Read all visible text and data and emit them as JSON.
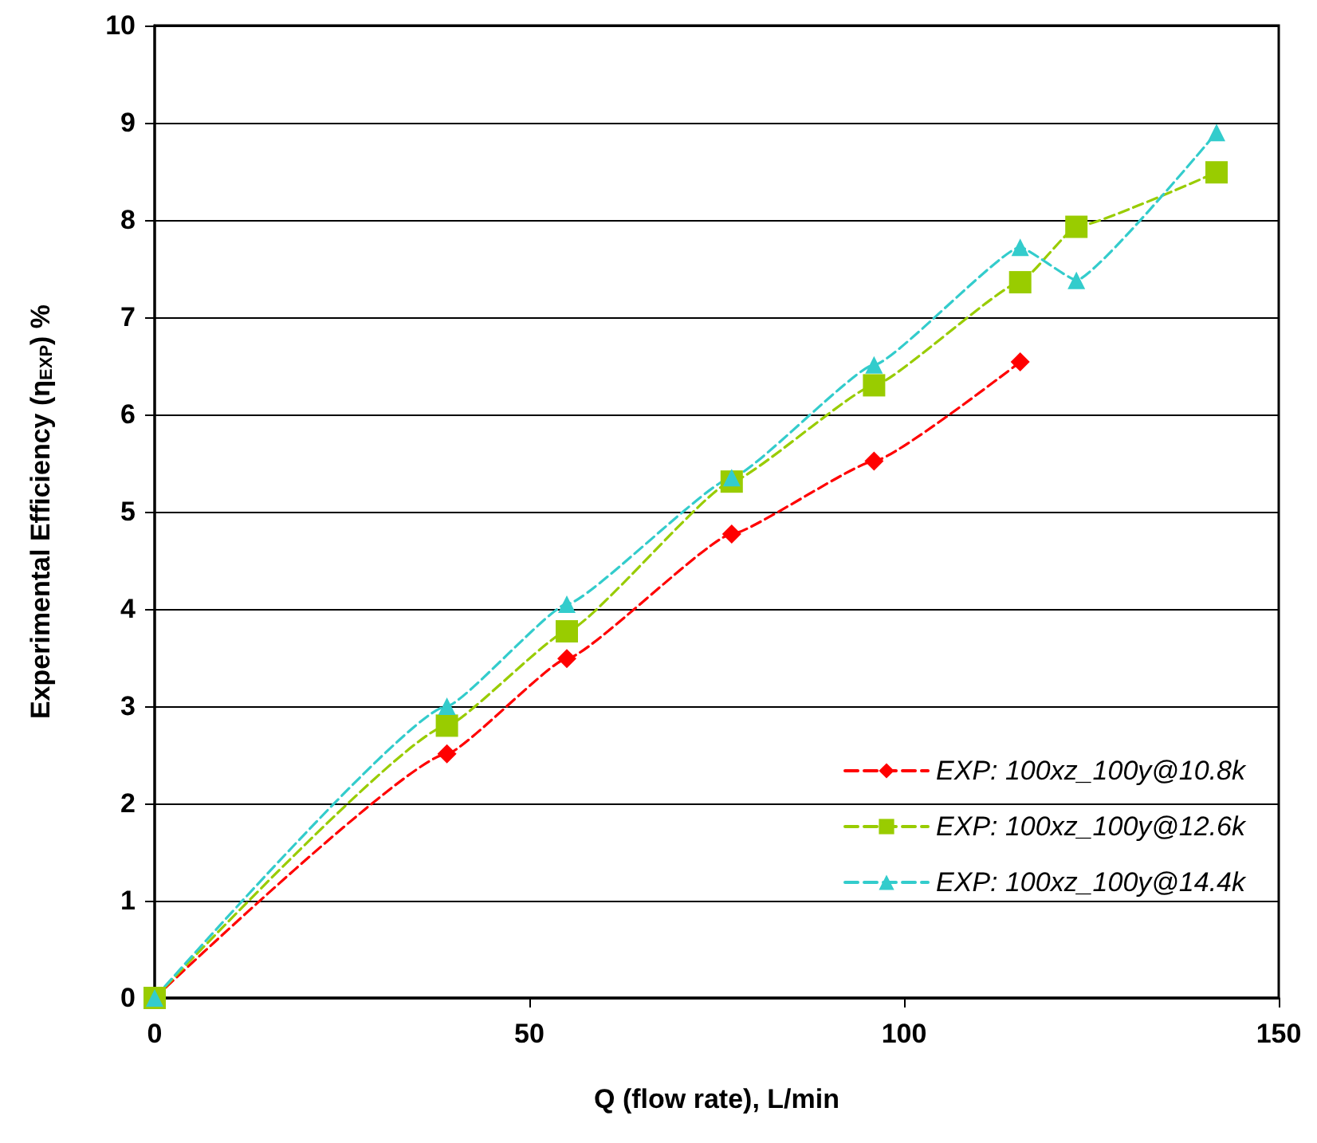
{
  "chart_data": {
    "type": "line",
    "xlabel": "Q (flow rate), L/min",
    "ylabel": "Experimental Efficiency (η$_{EXP}$) %",
    "xlim": [
      0,
      150
    ],
    "xticks": [
      0,
      50,
      100,
      150
    ],
    "ylim": [
      0,
      10
    ],
    "yticks": [
      0,
      1,
      2,
      3,
      4,
      5,
      6,
      7,
      8,
      9,
      10
    ],
    "grid": "y",
    "legend": "bottom right",
    "line_style": "dashed",
    "series": [
      {
        "name": "EXP: 100xz_100y@10.8k",
        "color": "#ff0000",
        "marker": "diamond",
        "x": [
          0,
          39,
          55,
          77,
          96,
          115.5
        ],
        "values": [
          0,
          2.51,
          3.49,
          4.77,
          5.52,
          6.54
        ]
      },
      {
        "name": "EXP: 100xz_100y@12.6k",
        "color": "#99cc00",
        "marker": "square",
        "x": [
          0,
          39,
          55,
          77,
          96,
          115.5,
          123,
          141.7
        ],
        "values": [
          0,
          2.8,
          3.77,
          5.31,
          6.3,
          7.36,
          7.93,
          8.49
        ]
      },
      {
        "name": "EXP: 100xz_100y@14.4k",
        "color": "#33cccc",
        "marker": "triangle",
        "x": [
          0,
          39,
          55,
          77,
          96,
          115.5,
          123,
          141.7
        ],
        "values": [
          0,
          3.0,
          4.05,
          5.35,
          6.51,
          7.72,
          7.38,
          8.9
        ]
      }
    ]
  }
}
